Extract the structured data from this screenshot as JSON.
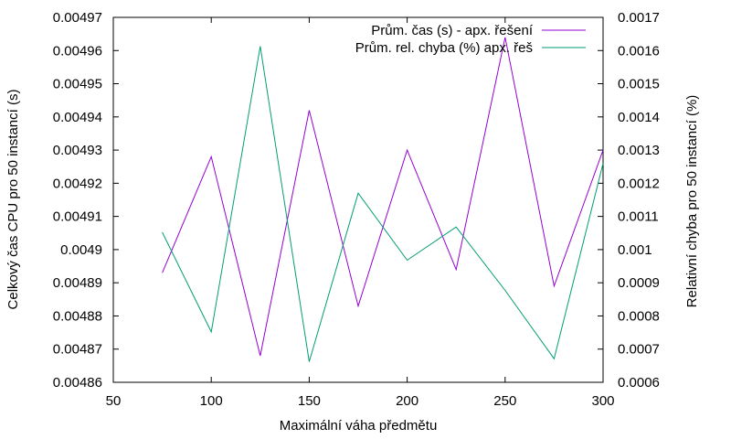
{
  "chart_data": {
    "type": "line",
    "xlabel": "Maximální váha předmětu",
    "ylabel_left": "Celkový čas CPU pro 50 instancí (s)",
    "ylabel_right": "Relativní chyba pro 50 instancí (%)",
    "xlim": [
      50,
      300
    ],
    "ylim_left": [
      0.00486,
      0.00497
    ],
    "ylim_right": [
      0.0006,
      0.0017
    ],
    "x_ticks": [
      "50",
      "100",
      "150",
      "200",
      "250",
      "300"
    ],
    "y_ticks_left": [
      "0.00486",
      "0.00487",
      "0.00488",
      "0.00489",
      "0.0049",
      "0.00491",
      "0.00492",
      "0.00493",
      "0.00494",
      "0.00495",
      "0.00496",
      "0.00497"
    ],
    "y_ticks_right": [
      "0.0006",
      "0.0007",
      "0.0008",
      "0.0009",
      "0.001",
      "0.0011",
      "0.0012",
      "0.0013",
      "0.0014",
      "0.0015",
      "0.0016",
      "0.0017"
    ],
    "grid": false,
    "legend_position": "top-right",
    "series": [
      {
        "name": "Prům. čas (s) - apx. řešení",
        "axis": "left",
        "color": "#9400d3",
        "x": [
          75,
          100,
          125,
          150,
          175,
          200,
          225,
          250,
          275,
          300
        ],
        "values": [
          0.004893,
          0.004928,
          0.004868,
          0.004942,
          0.004883,
          0.00493,
          0.004894,
          0.004964,
          0.004889,
          0.00493
        ]
      },
      {
        "name": "Prům. rel. chyba (%) apx. řeš",
        "axis": "right",
        "color": "#009e73",
        "x": [
          75,
          100,
          125,
          150,
          175,
          200,
          225,
          250,
          275,
          300
        ],
        "values": [
          0.001052,
          0.000752,
          0.001613,
          0.000662,
          0.00117,
          0.000968,
          0.001068,
          0.000877,
          0.000671,
          0.00126
        ]
      }
    ]
  }
}
